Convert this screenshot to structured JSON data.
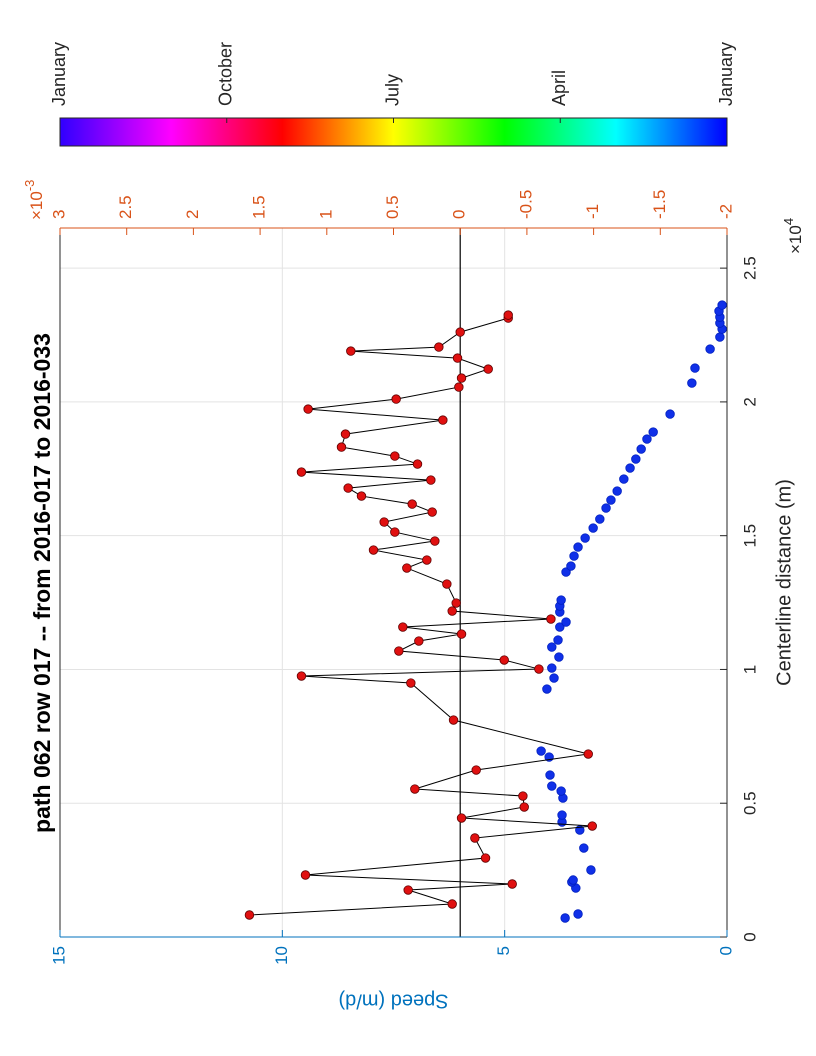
{
  "chart_data": {
    "type": "scatter",
    "title": "path 062 row 017 -- from 2016-017 to 2016-033",
    "xlabel": "Centerline distance (m)",
    "ylabel": "Speed (m/d)",
    "x_exponent": {
      "base": "×10",
      "exponent": "4"
    },
    "y2_exponent": {
      "base": "×10",
      "exponent": "-3"
    },
    "xlim": [
      0,
      26500
    ],
    "ylim": [
      0,
      15
    ],
    "y2lim": [
      -0.002,
      0.003
    ],
    "xticks": [
      0,
      {
        "value": 5000,
        "label": "0.5"
      },
      {
        "value": 10000,
        "label": "1"
      },
      {
        "value": 15000,
        "label": "1.5"
      },
      {
        "value": 20000,
        "label": "2"
      },
      {
        "value": 25000,
        "label": "2.5"
      }
    ],
    "yticks": [
      0,
      5,
      10,
      15
    ],
    "y2ticks": [
      {
        "value": -0.002,
        "label": "-2"
      },
      {
        "value": -0.0015,
        "label": "-1.5"
      },
      {
        "value": -0.001,
        "label": "-1"
      },
      {
        "value": -0.0005,
        "label": "-0.5"
      },
      0,
      {
        "value": 0.0005,
        "label": "0.5"
      },
      {
        "value": 0.001,
        "label": "1"
      },
      {
        "value": 0.0015,
        "label": "1.5"
      },
      {
        "value": 0.002,
        "label": "2"
      },
      {
        "value": 0.0025,
        "label": "2.5"
      },
      {
        "value": 0.003,
        "label": "3"
      }
    ],
    "grid": true,
    "y_axis_color": "#0072bd",
    "y2_axis_color": "#d95319",
    "hline": {
      "axis": "y2",
      "value": 0,
      "color": "#000000"
    },
    "colorbar": {
      "labels": [
        "January",
        "October",
        "July",
        "April",
        "January"
      ],
      "colors": [
        "#3000ff",
        "#ff00ff",
        "#ff0000",
        "#ffff00",
        "#00ff00",
        "#00ffff",
        "#0000ff"
      ]
    },
    "series": [
      {
        "color": "#1030e8",
        "edge": "#0020c0",
        "connect": false,
        "x": [
          710,
          860,
          1831,
          2055,
          2130,
          2504,
          3326,
          3999,
          4298,
          4559,
          5194,
          5456,
          5643,
          6054,
          6727,
          6951,
          9268,
          9679,
          10053,
          10464,
          10837,
          11099,
          11585,
          11771,
          12145,
          12370,
          12594,
          13640,
          13864,
          14238,
          14574,
          14911,
          15285,
          15621,
          16032,
          16331,
          16667,
          17116,
          17527,
          17863,
          18237,
          18610,
          18872,
          19544,
          20703,
          21264,
          21974,
          22422,
          22721,
          22945,
          23169,
          23394,
          23618
        ],
        "values": [
          3.64,
          3.35,
          3.4,
          3.49,
          3.46,
          3.06,
          3.22,
          3.31,
          3.71,
          3.71,
          3.69,
          3.73,
          3.94,
          3.98,
          4.0,
          4.18,
          4.05,
          3.89,
          3.94,
          3.78,
          3.94,
          3.8,
          3.76,
          3.62,
          3.76,
          3.76,
          3.73,
          3.62,
          3.51,
          3.44,
          3.35,
          3.19,
          3.01,
          2.86,
          2.72,
          2.61,
          2.47,
          2.32,
          2.18,
          2.05,
          1.93,
          1.8,
          1.66,
          1.28,
          0.79,
          0.72,
          0.38,
          0.16,
          0.11,
          0.16,
          0.16,
          0.18,
          0.11
        ]
      },
      {
        "color": "#e01010",
        "edge": "#600000",
        "connect": true,
        "axis": "y2",
        "x": [
          822,
          1233,
          1756,
          1981,
          2317,
          2952,
          3700,
          4148,
          4447,
          4858,
          5269,
          5531,
          6241,
          6839,
          8110,
          9492,
          9754,
          10015,
          10352,
          10688,
          11062,
          11323,
          11585,
          11884,
          12183,
          12482,
          13192,
          13790,
          14089,
          14463,
          14799,
          15135,
          15509,
          15883,
          16181,
          16480,
          16779,
          17078,
          17377,
          17676,
          17975,
          18311,
          18797,
          19320,
          19731,
          20105,
          20553,
          20890,
          21226,
          21637,
          21899,
          22048,
          22609,
          23132,
          23244
        ],
        "values": [
          0.00158,
          6e-05,
          0.00039,
          -0.00039,
          0.00116,
          -0.00019,
          -0.00011,
          -0.00099,
          -1e-05,
          -0.00048,
          -0.00047,
          0.00034,
          -0.00012,
          -0.00096,
          5e-05,
          0.00037,
          0.00119,
          -0.00059,
          -0.00033,
          0.00046,
          0.00031,
          -1e-05,
          0.00043,
          -0.00068,
          6e-05,
          3e-05,
          0.0001,
          0.0004,
          0.00025,
          0.00065,
          0.00019,
          0.00049,
          0.00057,
          0.00021,
          0.00036,
          0.00074,
          0.00084,
          0.00022,
          0.00119,
          0.00032,
          0.00049,
          0.00089,
          0.00086,
          0.00013,
          0.00114,
          0.00048,
          1e-05,
          -1e-05,
          -0.00021,
          2e-05,
          0.00082,
          0.00016,
          0,
          -0.00036,
          -0.00036
        ]
      }
    ]
  }
}
